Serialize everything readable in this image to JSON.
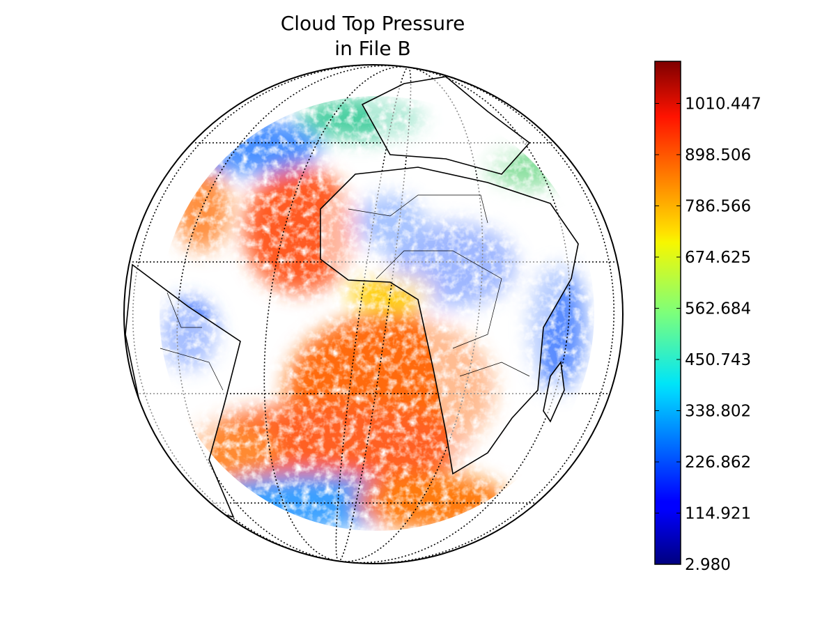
{
  "title": [
    "Cloud Top Pressure",
    "in File B"
  ],
  "colorbar": {
    "lim": [
      2.98,
      1102.6
    ],
    "ticks": [
      {
        "value": 2.98,
        "label": "2.980"
      },
      114.921,
      226.862,
      338.802,
      450.743,
      562.684,
      674.625,
      786.566,
      898.506,
      1010.447
    ]
  }
}
